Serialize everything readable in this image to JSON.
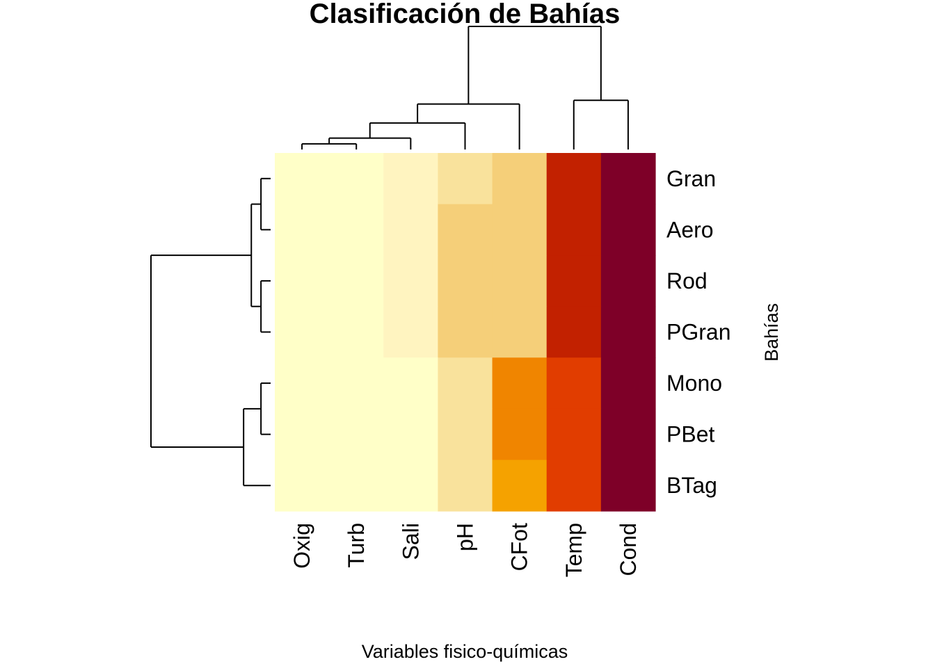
{
  "chart_data": {
    "type": "heatmap",
    "title": "Clasificación de Bahías",
    "xlabel": "Variables fisico-químicas",
    "ylabel": "Bahías",
    "columns": [
      "Oxig",
      "Turb",
      "Sali",
      "pH",
      "CFot",
      "Temp",
      "Cond"
    ],
    "rows": [
      "Gran",
      "Aero",
      "Rod",
      "PGran",
      "Mono",
      "PBet",
      "BTag"
    ],
    "palette": [
      "#FFFFC8",
      "#FFF4C0",
      "#F9E29C",
      "#F5CF79",
      "#F5A200",
      "#F08500",
      "#E13D00",
      "#C22100",
      "#7E0028"
    ],
    "values": [
      [
        0,
        0,
        1,
        2,
        3,
        7,
        8
      ],
      [
        0,
        0,
        1,
        3,
        3,
        7,
        8
      ],
      [
        0,
        0,
        1,
        3,
        3,
        7,
        8
      ],
      [
        0,
        0,
        1,
        3,
        3,
        7,
        8
      ],
      [
        0,
        0,
        0,
        2,
        5,
        6,
        8
      ],
      [
        0,
        0,
        0,
        2,
        5,
        6,
        8
      ],
      [
        0,
        0,
        0,
        2,
        4,
        6,
        8
      ]
    ],
    "col_dendrogram": {
      "merges": [
        [
          -1,
          -2
        ],
        [
          1,
          -3
        ],
        [
          2,
          -4
        ],
        [
          3,
          -5
        ],
        [
          -6,
          -7
        ],
        [
          4,
          5
        ]
      ],
      "heights": [
        0.3,
        0.6,
        1.4,
        2.4,
        2.6,
        6.5
      ]
    },
    "row_dendrogram": {
      "merges": [
        [
          -1,
          -2
        ],
        [
          -3,
          -4
        ],
        [
          -5,
          -6
        ],
        [
          1,
          2
        ],
        [
          3,
          -7
        ],
        [
          4,
          5
        ]
      ],
      "heights": [
        0.5,
        0.5,
        0.5,
        1.0,
        1.4,
        6.2
      ]
    }
  }
}
